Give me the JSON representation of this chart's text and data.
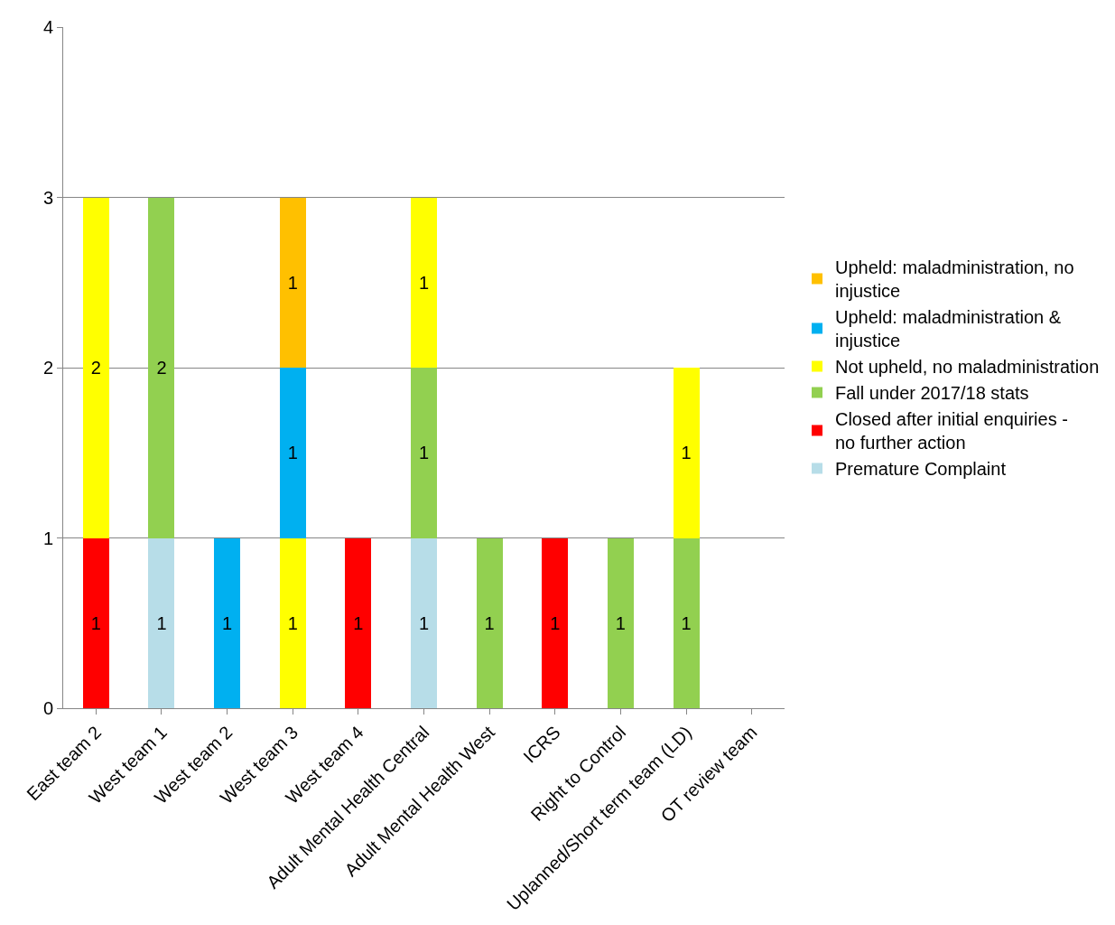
{
  "chart_data": {
    "type": "bar",
    "stacked": true,
    "categories": [
      "East team 2",
      "West team 1",
      "West team 2",
      "West team 3",
      "West team 4",
      "Adult Mental Health Central",
      "Adult Mental Health West",
      "ICRS",
      "Right to Control",
      "Uplanned/Short term team (LD)",
      "OT review team"
    ],
    "series": [
      {
        "name": "Premature Complaint",
        "color": "#b7dde8",
        "values": [
          null,
          1,
          null,
          null,
          null,
          1,
          null,
          null,
          null,
          null,
          null
        ]
      },
      {
        "name": "Closed after initial enquiries - no further action",
        "color": "#ff0000",
        "values": [
          1,
          null,
          null,
          null,
          1,
          null,
          null,
          1,
          null,
          null,
          null
        ]
      },
      {
        "name": "Fall under 2017/18 stats",
        "color": "#92d050",
        "values": [
          null,
          2,
          null,
          null,
          null,
          1,
          1,
          null,
          1,
          1,
          null
        ]
      },
      {
        "name": "Not upheld, no maladministration",
        "color": "#ffff00",
        "values": [
          2,
          null,
          null,
          1,
          null,
          1,
          null,
          null,
          null,
          1,
          null
        ]
      },
      {
        "name": "Upheld: maladministration & injustice",
        "color": "#00b0f0",
        "values": [
          null,
          null,
          1,
          1,
          null,
          null,
          null,
          null,
          null,
          null,
          null
        ]
      },
      {
        "name": "Upheld: maladministration, no injustice",
        "color": "#ffc000",
        "values": [
          null,
          null,
          null,
          1,
          null,
          null,
          null,
          null,
          null,
          null,
          null
        ]
      }
    ],
    "ylim": [
      0,
      4
    ],
    "yticks": [
      0,
      1,
      2,
      3,
      4
    ],
    "grid": "y",
    "legend": "right",
    "data_labels": true
  }
}
